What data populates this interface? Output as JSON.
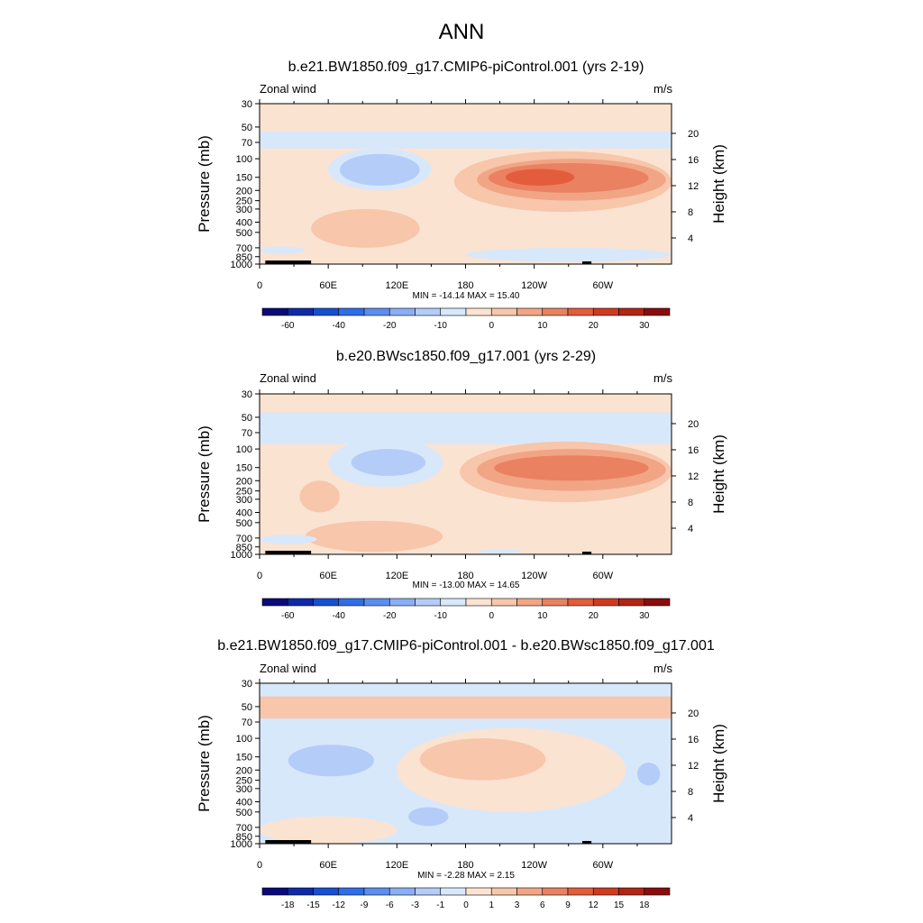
{
  "page_title": "ANN",
  "panels": [
    {
      "title": "b.e21.BW1850.f09_g17.CMIP6-piControl.001 (yrs 2-19)",
      "left_label": "Zonal wind",
      "right_label": "m/s",
      "stats": "MIN = -14.14  MAX =  15.40"
    },
    {
      "title": "b.e20.BWsc1850.f09_g17.001 (yrs 2-29)",
      "left_label": "Zonal wind",
      "right_label": "m/s",
      "stats": "MIN = -13.00  MAX =  14.65"
    },
    {
      "title": "b.e21.BW1850.f09_g17.CMIP6-piControl.001 - b.e20.BWsc1850.f09_g17.001",
      "left_label": "Zonal wind",
      "right_label": "m/s",
      "stats": "MIN = -2.28  MAX =   2.15"
    }
  ],
  "chart_data": [
    {
      "type": "heatmap",
      "title": "b.e21.BW1850.f09_g17.CMIP6-piControl.001 (yrs 2-19)",
      "variable": "Zonal wind",
      "units": "m/s",
      "ylabel": "Pressure (mb)",
      "ylabel_right": "Height (km)",
      "xlim": [
        0,
        360
      ],
      "ylim": [
        1000,
        30
      ],
      "log_y": true,
      "x_ticks": [
        "0",
        "60E",
        "120E",
        "180",
        "120W",
        "60W"
      ],
      "y_ticks": [
        "30",
        "50",
        "70",
        "100",
        "150",
        "200",
        "250",
        "300",
        "400",
        "500",
        "700",
        "850",
        "1000"
      ],
      "y_right_ticks": [
        "4",
        "8",
        "12",
        "16",
        "20"
      ],
      "stats": {
        "min": -14.14,
        "max": 15.4
      },
      "colorbar_labels": [
        "-60",
        "-40",
        "-20",
        "-10",
        "0",
        "10",
        "20",
        "30"
      ],
      "colors": [
        "#0a0a7a",
        "#0e2aa8",
        "#1450d0",
        "#2e6ee8",
        "#5a8ef0",
        "#8aaef5",
        "#b4ccf8",
        "#d8e8fb",
        "#fbe3d2",
        "#f7c6ab",
        "#f1a585",
        "#ea8160",
        "#e35c3c",
        "#cf3a1f",
        "#b22414",
        "#8a0c0c"
      ],
      "regions": [
        {
          "x_range": [
            0,
            360
          ],
          "p_range": [
            30,
            1000
          ],
          "level": 0
        },
        {
          "x_range": [
            0,
            360
          ],
          "p_range": [
            55,
            80
          ],
          "level": -1
        },
        {
          "x_range": [
            60,
            150
          ],
          "p_range": [
            80,
            200
          ],
          "level": -1
        },
        {
          "x_range": [
            70,
            140
          ],
          "p_range": [
            90,
            180
          ],
          "level": -2
        },
        {
          "x_range": [
            170,
            360
          ],
          "p_range": [
            85,
            320
          ],
          "level": 1
        },
        {
          "x_range": [
            190,
            355
          ],
          "p_range": [
            100,
            250
          ],
          "level": 2
        },
        {
          "x_range": [
            200,
            340
          ],
          "p_range": [
            110,
            210
          ],
          "level": 3
        },
        {
          "x_range": [
            215,
            275
          ],
          "p_range": [
            125,
            180
          ],
          "level": 4
        },
        {
          "x_range": [
            45,
            140
          ],
          "p_range": [
            300,
            700
          ],
          "level": 1
        },
        {
          "x_range": [
            180,
            360
          ],
          "p_range": [
            700,
            950
          ],
          "level": -1
        },
        {
          "x_range": [
            0,
            40
          ],
          "p_range": [
            680,
            800
          ],
          "level": -1
        }
      ]
    },
    {
      "type": "heatmap",
      "title": "b.e20.BWsc1850.f09_g17.001 (yrs 2-29)",
      "variable": "Zonal wind",
      "units": "m/s",
      "ylabel": "Pressure (mb)",
      "ylabel_right": "Height (km)",
      "xlim": [
        0,
        360
      ],
      "ylim": [
        1000,
        30
      ],
      "log_y": true,
      "x_ticks": [
        "0",
        "60E",
        "120E",
        "180",
        "120W",
        "60W"
      ],
      "y_ticks": [
        "30",
        "50",
        "70",
        "100",
        "150",
        "200",
        "250",
        "300",
        "400",
        "500",
        "700",
        "850",
        "1000"
      ],
      "y_right_ticks": [
        "4",
        "8",
        "12",
        "16",
        "20"
      ],
      "stats": {
        "min": -13.0,
        "max": 14.65
      },
      "colorbar_labels": [
        "-60",
        "-40",
        "-20",
        "-10",
        "0",
        "10",
        "20",
        "30"
      ],
      "colors": [
        "#0a0a7a",
        "#0e2aa8",
        "#1450d0",
        "#2e6ee8",
        "#5a8ef0",
        "#8aaef5",
        "#b4ccf8",
        "#d8e8fb",
        "#fbe3d2",
        "#f7c6ab",
        "#f1a585",
        "#ea8160",
        "#e35c3c",
        "#cf3a1f",
        "#b22414",
        "#8a0c0c"
      ],
      "regions": [
        {
          "x_range": [
            0,
            360
          ],
          "p_range": [
            30,
            1000
          ],
          "level": 0
        },
        {
          "x_range": [
            0,
            360
          ],
          "p_range": [
            45,
            90
          ],
          "level": -1
        },
        {
          "x_range": [
            60,
            160
          ],
          "p_range": [
            80,
            230
          ],
          "level": -1
        },
        {
          "x_range": [
            80,
            145
          ],
          "p_range": [
            100,
            180
          ],
          "level": -2
        },
        {
          "x_range": [
            175,
            360
          ],
          "p_range": [
            85,
            320
          ],
          "level": 1
        },
        {
          "x_range": [
            190,
            355
          ],
          "p_range": [
            100,
            250
          ],
          "level": 2
        },
        {
          "x_range": [
            205,
            340
          ],
          "p_range": [
            115,
            200
          ],
          "level": 3
        },
        {
          "x_range": [
            40,
            160
          ],
          "p_range": [
            480,
            950
          ],
          "level": 1
        },
        {
          "x_range": [
            35,
            70
          ],
          "p_range": [
            200,
            400
          ],
          "level": 1
        },
        {
          "x_range": [
            190,
            230
          ],
          "p_range": [
            900,
            980
          ],
          "level": -1
        },
        {
          "x_range": [
            0,
            50
          ],
          "p_range": [
            650,
            800
          ],
          "level": -1
        }
      ]
    },
    {
      "type": "heatmap",
      "title": "b.e21.BW1850.f09_g17.CMIP6-piControl.001 - b.e20.BWsc1850.f09_g17.001",
      "variable": "Zonal wind",
      "units": "m/s",
      "ylabel": "Pressure (mb)",
      "ylabel_right": "Height (km)",
      "xlim": [
        0,
        360
      ],
      "ylim": [
        1000,
        30
      ],
      "log_y": true,
      "x_ticks": [
        "0",
        "60E",
        "120E",
        "180",
        "120W",
        "60W"
      ],
      "y_ticks": [
        "30",
        "50",
        "70",
        "100",
        "150",
        "200",
        "250",
        "300",
        "400",
        "500",
        "700",
        "850",
        "1000"
      ],
      "y_right_ticks": [
        "4",
        "8",
        "12",
        "16",
        "20"
      ],
      "stats": {
        "min": -2.28,
        "max": 2.15
      },
      "colorbar_labels": [
        "-18",
        "-15",
        "-12",
        "-9",
        "-6",
        "-3",
        "-1",
        "0",
        "1",
        "3",
        "6",
        "9",
        "12",
        "15",
        "18"
      ],
      "colors": [
        "#0a0a7a",
        "#0e2aa8",
        "#1450d0",
        "#2e6ee8",
        "#5a8ef0",
        "#8aaef5",
        "#b4ccf8",
        "#d8e8fb",
        "#fbe3d2",
        "#f7c6ab",
        "#f1a585",
        "#ea8160",
        "#e35c3c",
        "#cf3a1f",
        "#b22414",
        "#8a0c0c"
      ],
      "regions": [
        {
          "x_range": [
            0,
            360
          ],
          "p_range": [
            30,
            1000
          ],
          "level": -1
        },
        {
          "x_range": [
            0,
            360
          ],
          "p_range": [
            40,
            65
          ],
          "level": 1
        },
        {
          "x_range": [
            120,
            320
          ],
          "p_range": [
            80,
            500
          ],
          "level": 0
        },
        {
          "x_range": [
            140,
            250
          ],
          "p_range": [
            100,
            250
          ],
          "level": 1
        },
        {
          "x_range": [
            25,
            100
          ],
          "p_range": [
            115,
            230
          ],
          "level": -2
        },
        {
          "x_range": [
            130,
            165
          ],
          "p_range": [
            450,
            680
          ],
          "level": -2
        },
        {
          "x_range": [
            0,
            120
          ],
          "p_range": [
            550,
            1000
          ],
          "level": 0
        },
        {
          "x_range": [
            330,
            350
          ],
          "p_range": [
            170,
            280
          ],
          "level": -2
        }
      ]
    }
  ]
}
